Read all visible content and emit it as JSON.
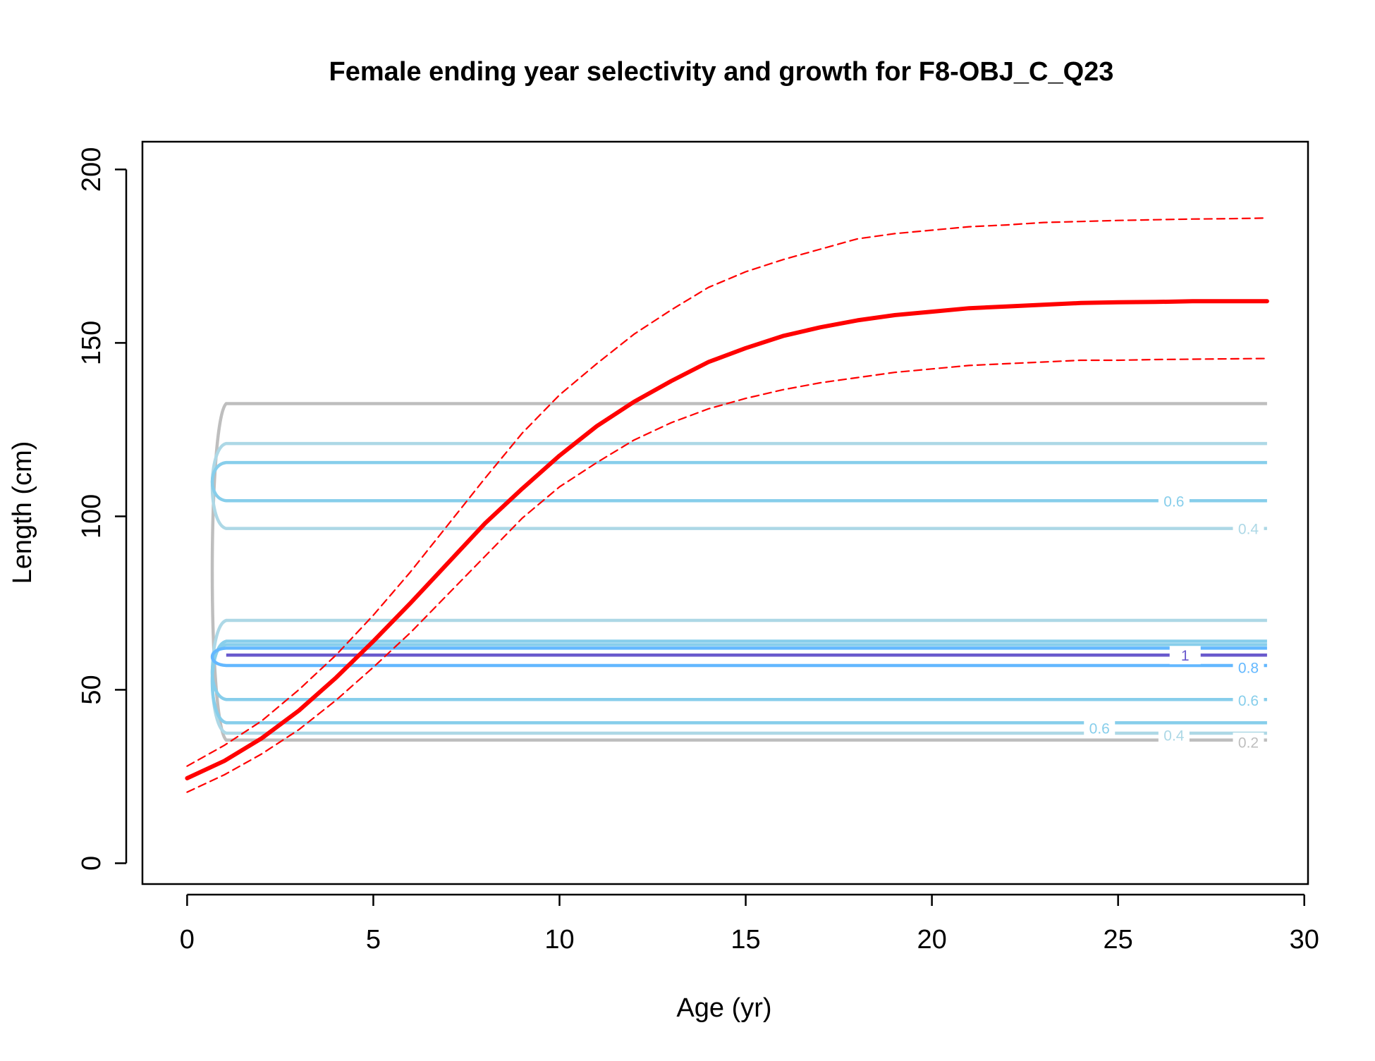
{
  "chart_data": {
    "type": "line",
    "title": "Female ending year selectivity and growth for F8-OBJ_C_Q23",
    "xlabel": "Age (yr)",
    "ylabel": "Length (cm)",
    "xlim": [
      -1.2,
      30.1
    ],
    "ylim": [
      -6,
      208
    ],
    "x_ticks": [
      0,
      5,
      10,
      15,
      20,
      25,
      30
    ],
    "y_ticks": [
      0,
      50,
      100,
      150,
      200
    ],
    "grid": false,
    "legend": "none",
    "series": [
      {
        "role": "mean-length-at-age",
        "color": "#ff0000",
        "style": "solid-thick",
        "x": [
          0,
          1,
          2,
          3,
          4,
          5,
          6,
          7,
          8,
          9,
          10,
          11,
          12,
          13,
          14,
          15,
          16,
          17,
          18,
          19,
          20,
          21,
          22,
          23,
          24,
          25,
          26,
          27,
          28,
          29
        ],
        "y": [
          24.5,
          29.5,
          36,
          44,
          53.5,
          64,
          75,
          86.5,
          98,
          108,
          117.5,
          126,
          133,
          139,
          144.5,
          148.5,
          152,
          154.5,
          156.5,
          158,
          159,
          160,
          160.5,
          161,
          161.5,
          161.7,
          161.8,
          162,
          162,
          162
        ]
      },
      {
        "role": "upper-interval",
        "color": "#ff0000",
        "style": "dashed",
        "x": [
          0,
          1,
          2,
          3,
          4,
          5,
          6,
          7,
          8,
          9,
          10,
          11,
          12,
          13,
          14,
          15,
          16,
          17,
          18,
          19,
          20,
          21,
          22,
          23,
          24,
          25,
          26,
          27,
          28,
          29
        ],
        "y": [
          28,
          34,
          41,
          50,
          60,
          71.5,
          84,
          97.5,
          111,
          124,
          135,
          144,
          152.5,
          159.5,
          166,
          170.5,
          174,
          177,
          180,
          181.5,
          182.5,
          183.5,
          184,
          184.7,
          185,
          185.3,
          185.5,
          185.7,
          185.8,
          186
        ]
      },
      {
        "role": "lower-interval",
        "color": "#ff0000",
        "style": "dashed",
        "x": [
          0,
          1,
          2,
          3,
          4,
          5,
          6,
          7,
          8,
          9,
          10,
          11,
          12,
          13,
          14,
          15,
          16,
          17,
          18,
          19,
          20,
          21,
          22,
          23,
          24,
          25,
          26,
          27,
          28,
          29
        ],
        "y": [
          20.5,
          25.5,
          31.5,
          38.5,
          47,
          56.5,
          66.5,
          77.5,
          88.5,
          99.5,
          108.5,
          115.5,
          122,
          127,
          131,
          134,
          136.5,
          138.5,
          140,
          141.5,
          142.5,
          143.5,
          144,
          144.5,
          145,
          145,
          145.2,
          145.3,
          145.4,
          145.5
        ]
      }
    ],
    "contours": [
      {
        "level": 0.2,
        "color": "#bebebe",
        "label": "0.2",
        "bands": [
          [
            35.5,
            132.5
          ]
        ]
      },
      {
        "level": 0.4,
        "color": "#add8e6",
        "label": "0.4",
        "bands": [
          [
            37.5,
            70
          ],
          [
            96.5,
            121
          ]
        ]
      },
      {
        "level": 0.6,
        "color": "#87ceeb",
        "label": "0.6",
        "bands": [
          [
            40.5,
            64
          ],
          [
            47.2,
            63
          ],
          [
            104.5,
            115.5
          ]
        ]
      },
      {
        "level": 0.8,
        "color": "#63b8ff",
        "label": "0.8",
        "bands": [
          [
            57,
            62
          ]
        ]
      },
      {
        "level": 1,
        "color": "#6a5acd",
        "label": "1",
        "bands": [
          [
            60,
            60
          ]
        ]
      }
    ],
    "contour_labels": [
      {
        "text": "0.6",
        "x": 26.5,
        "y": 104.5,
        "color": "#87ceeb"
      },
      {
        "text": "0.4",
        "x": 28.5,
        "y": 96.5,
        "color": "#add8e6"
      },
      {
        "text": "1",
        "x": 26.8,
        "y": 60,
        "color": "#6a5acd"
      },
      {
        "text": "0.8",
        "x": 28.5,
        "y": 56.5,
        "color": "#63b8ff"
      },
      {
        "text": "0.6",
        "x": 28.5,
        "y": 47,
        "color": "#87ceeb"
      },
      {
        "text": "0.6",
        "x": 24.5,
        "y": 39,
        "color": "#87ceeb"
      },
      {
        "text": "0.4",
        "x": 26.5,
        "y": 37,
        "color": "#add8e6"
      },
      {
        "text": "0.2",
        "x": 28.5,
        "y": 35,
        "color": "#bebebe"
      }
    ]
  }
}
